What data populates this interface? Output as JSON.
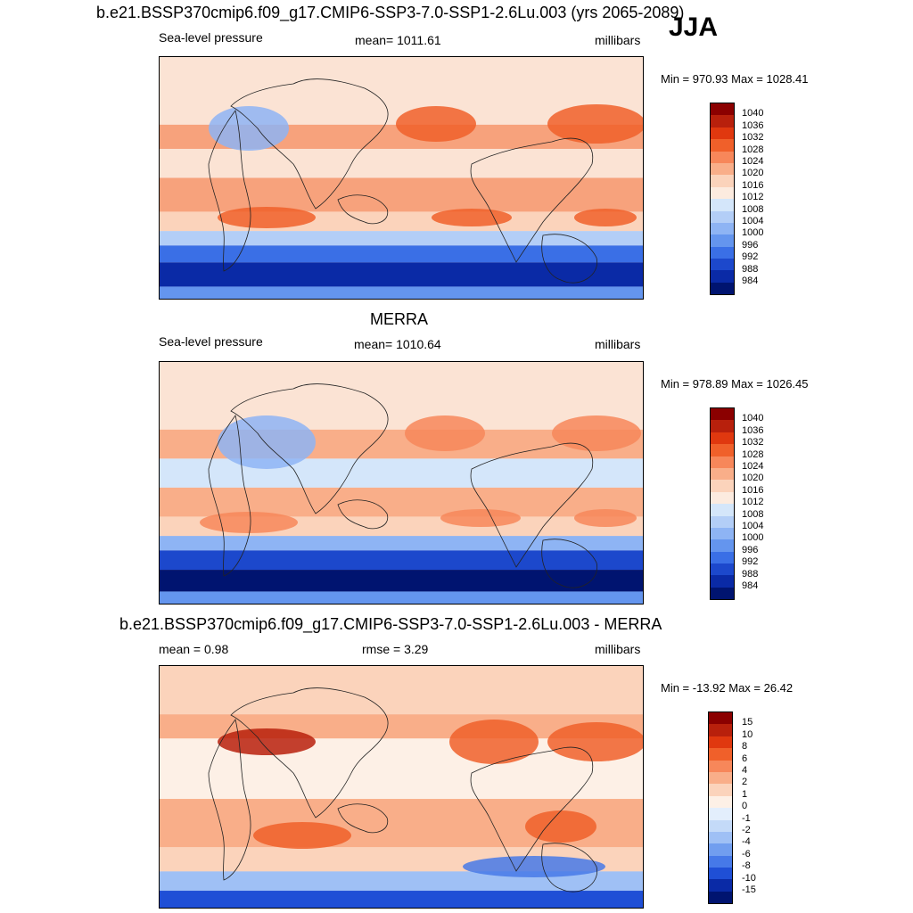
{
  "main_title": "b.e21.BSSP370cmip6.f09_g17.CMIP6-SSP3-7.0-SSP1-2.6Lu.003 (yrs 2065-2089)",
  "season": "JJA",
  "panels": [
    {
      "id": "model",
      "title": "",
      "left_label": "Sea-level pressure",
      "center_label": "mean= 1011.61",
      "right_label": "millibars",
      "minmax": "Min = 970.93 Max = 1028.41",
      "colorbar": {
        "labels": [
          "1040",
          "1036",
          "1032",
          "1028",
          "1024",
          "1020",
          "1016",
          "1012",
          "1008",
          "1004",
          "1000",
          "996",
          "992",
          "988",
          "984"
        ],
        "colors": [
          "#8b0000",
          "#b8200c",
          "#e0380f",
          "#f0602a",
          "#f7875a",
          "#f9ae89",
          "#fbd3bb",
          "#fcebdf",
          "#d4e6fa",
          "#b3cef7",
          "#8eb4f4",
          "#6495ee",
          "#3a6fe6",
          "#1c48cc",
          "#0a2aa6",
          "#001470"
        ]
      }
    },
    {
      "id": "merra",
      "title": "MERRA",
      "left_label": "Sea-level pressure",
      "center_label": "mean= 1010.64",
      "right_label": "millibars",
      "minmax": "Min = 978.89 Max = 1026.45",
      "colorbar": {
        "labels": [
          "1040",
          "1036",
          "1032",
          "1028",
          "1024",
          "1020",
          "1016",
          "1012",
          "1008",
          "1004",
          "1000",
          "996",
          "992",
          "988",
          "984"
        ],
        "colors": [
          "#8b0000",
          "#b8200c",
          "#e0380f",
          "#f0602a",
          "#f7875a",
          "#f9ae89",
          "#fbd3bb",
          "#fcebdf",
          "#d4e6fa",
          "#b3cef7",
          "#8eb4f4",
          "#6495ee",
          "#3a6fe6",
          "#1c48cc",
          "#0a2aa6",
          "#001470"
        ]
      }
    },
    {
      "id": "diff",
      "title": "b.e21.BSSP370cmip6.f09_g17.CMIP6-SSP3-7.0-SSP1-2.6Lu.003 - MERRA",
      "left_label": "mean =   0.98",
      "center_label": "rmse =   3.29",
      "right_label": "millibars",
      "minmax": "Min = -13.92 Max =  26.42",
      "colorbar": {
        "labels": [
          "15",
          "10",
          "8",
          "6",
          "4",
          "2",
          "1",
          "0",
          "-1",
          "-2",
          "-4",
          "-6",
          "-8",
          "-10",
          "-15"
        ],
        "colors": [
          "#8b0000",
          "#b8200c",
          "#e0380f",
          "#f0602a",
          "#f7875a",
          "#f9ae89",
          "#fbd3bb",
          "#fdf0e6",
          "#e3eefc",
          "#c4daf8",
          "#9fc0f5",
          "#719eef",
          "#4679e8",
          "#1f4fd6",
          "#0a2aa6",
          "#001470"
        ]
      }
    }
  ]
}
